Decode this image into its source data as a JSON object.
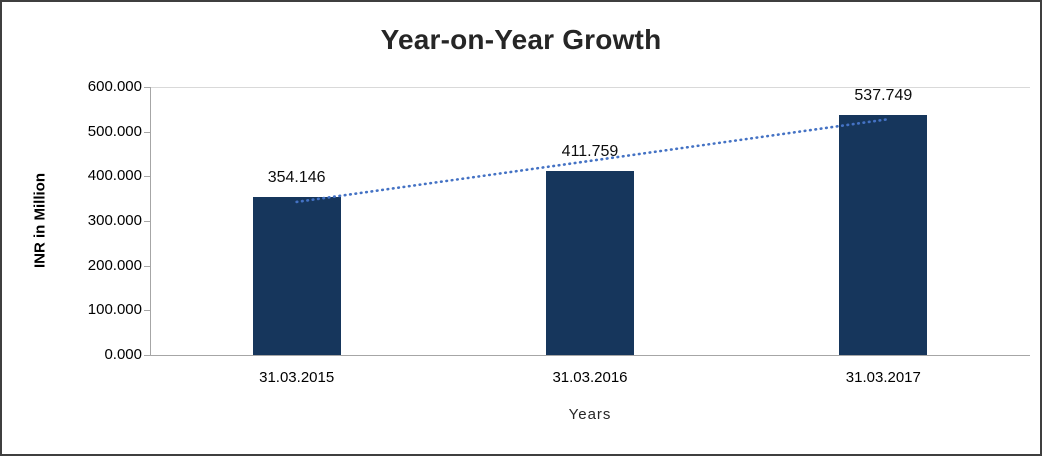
{
  "chart_data": {
    "type": "bar",
    "title": "Year-on-Year Growth",
    "xlabel": "Years",
    "ylabel": "INR in Million",
    "categories": [
      "31.03.2015",
      "31.03.2016",
      "31.03.2017"
    ],
    "values": [
      354.146,
      411.759,
      537.749
    ],
    "data_labels": [
      "354.146",
      "411.759",
      "537.749"
    ],
    "ylim": [
      0,
      600
    ],
    "ytick_step": 100,
    "ytick_labels": [
      "0.000",
      "100.000",
      "200.000",
      "300.000",
      "400.000",
      "500.000",
      "600.000"
    ],
    "legend": "none",
    "grid": "top-gridline-only",
    "trendline": "linear-dotted",
    "colors": {
      "bar": "#16365c",
      "trendline": "#4472c4",
      "axis": "#a6a6a6",
      "gridline": "#d9d9d9",
      "text": "#000000",
      "title": "#262626"
    }
  }
}
